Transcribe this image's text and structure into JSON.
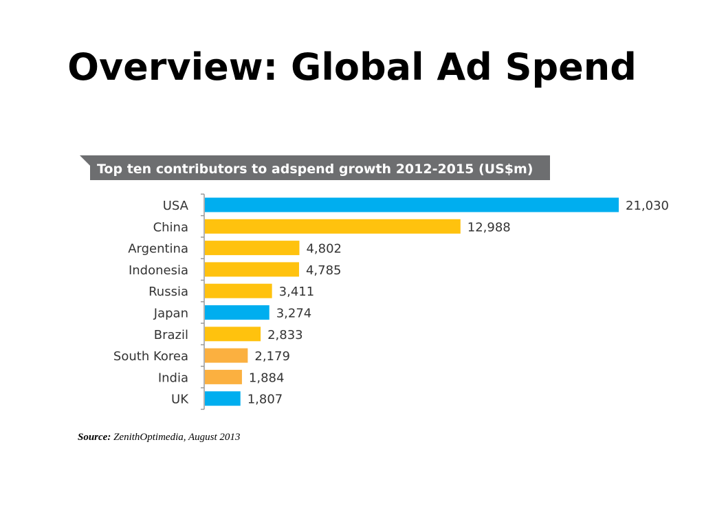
{
  "slide": {
    "title": "Overview: Global Ad Spend"
  },
  "source": {
    "label": "Source:",
    "text": "ZenithOptimedia, August 2013"
  },
  "colors": {
    "banner": "#6d6e70",
    "blue": "#00aeef",
    "gold": "#ffc20e",
    "light_gold": "#fbb040",
    "axis": "#999999"
  },
  "chart_data": {
    "type": "bar",
    "orientation": "horizontal",
    "title": "Top ten contributors to adspend growth 2012-2015 (US$m)",
    "categories": [
      "USA",
      "China",
      "Argentina",
      "Indonesia",
      "Russia",
      "Japan",
      "Brazil",
      "South Korea",
      "India",
      "UK"
    ],
    "values": [
      21030,
      12988,
      4802,
      4785,
      3411,
      3274,
      2833,
      2179,
      1884,
      1807
    ],
    "value_labels": [
      "21,030",
      "12,988",
      "4,802",
      "4,785",
      "3,411",
      "3,274",
      "2,833",
      "2,179",
      "1,884",
      "1,807"
    ],
    "bar_colors": [
      "blue",
      "gold",
      "gold",
      "gold",
      "gold",
      "blue",
      "gold",
      "light_gold",
      "light_gold",
      "blue"
    ],
    "xlabel": "",
    "ylabel": "",
    "xlim": [
      0,
      21030
    ],
    "grid": false,
    "legend": "none"
  }
}
